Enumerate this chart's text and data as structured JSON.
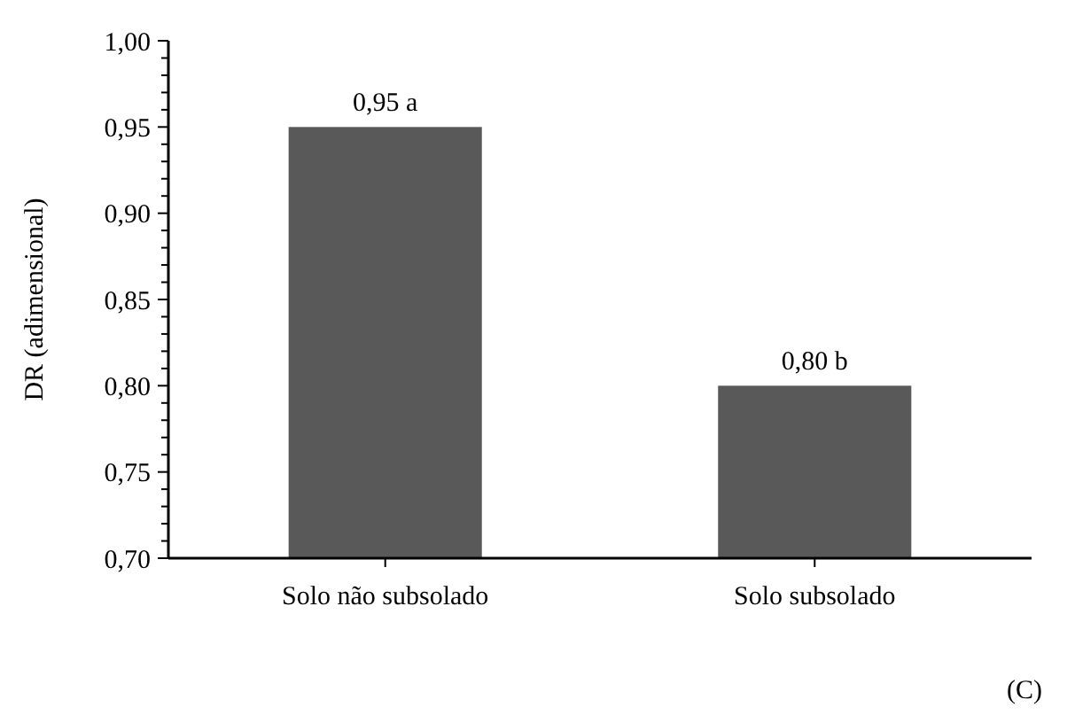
{
  "chart_data": {
    "type": "bar",
    "ylabel": "DR (adimensional)",
    "categories": [
      "Solo não subsolado",
      "Solo subsolado"
    ],
    "values": [
      0.95,
      0.8
    ],
    "color": "#595959",
    "value_labels": [
      "0,95 a",
      "0,80 b"
    ],
    "ylim": [
      0.7,
      1.0
    ],
    "yticks": [
      {
        "value": 0.7,
        "label": "0,70"
      },
      {
        "value": 0.71,
        "label": null
      },
      {
        "value": 0.72,
        "label": null
      },
      {
        "value": 0.73,
        "label": null
      },
      {
        "value": 0.74,
        "label": null
      },
      {
        "value": 0.75,
        "label": "0,75"
      },
      {
        "value": 0.76,
        "label": null
      },
      {
        "value": 0.77,
        "label": null
      },
      {
        "value": 0.78,
        "label": null
      },
      {
        "value": 0.79,
        "label": null
      },
      {
        "value": 0.8,
        "label": "0,80"
      },
      {
        "value": 0.81,
        "label": null
      },
      {
        "value": 0.82,
        "label": null
      },
      {
        "value": 0.83,
        "label": null
      },
      {
        "value": 0.84,
        "label": null
      },
      {
        "value": 0.85,
        "label": "0,85"
      },
      {
        "value": 0.86,
        "label": null
      },
      {
        "value": 0.87,
        "label": null
      },
      {
        "value": 0.88,
        "label": null
      },
      {
        "value": 0.89,
        "label": null
      },
      {
        "value": 0.9,
        "label": "0,90"
      },
      {
        "value": 0.91,
        "label": null
      },
      {
        "value": 0.92,
        "label": null
      },
      {
        "value": 0.93,
        "label": null
      },
      {
        "value": 0.94,
        "label": null
      },
      {
        "value": 0.95,
        "label": "0,95"
      },
      {
        "value": 0.96,
        "label": null
      },
      {
        "value": 0.97,
        "label": null
      },
      {
        "value": 0.98,
        "label": null
      },
      {
        "value": 0.99,
        "label": null
      },
      {
        "value": 1.0,
        "label": "1,00"
      }
    ],
    "annotations": [
      "(C)"
    ]
  }
}
